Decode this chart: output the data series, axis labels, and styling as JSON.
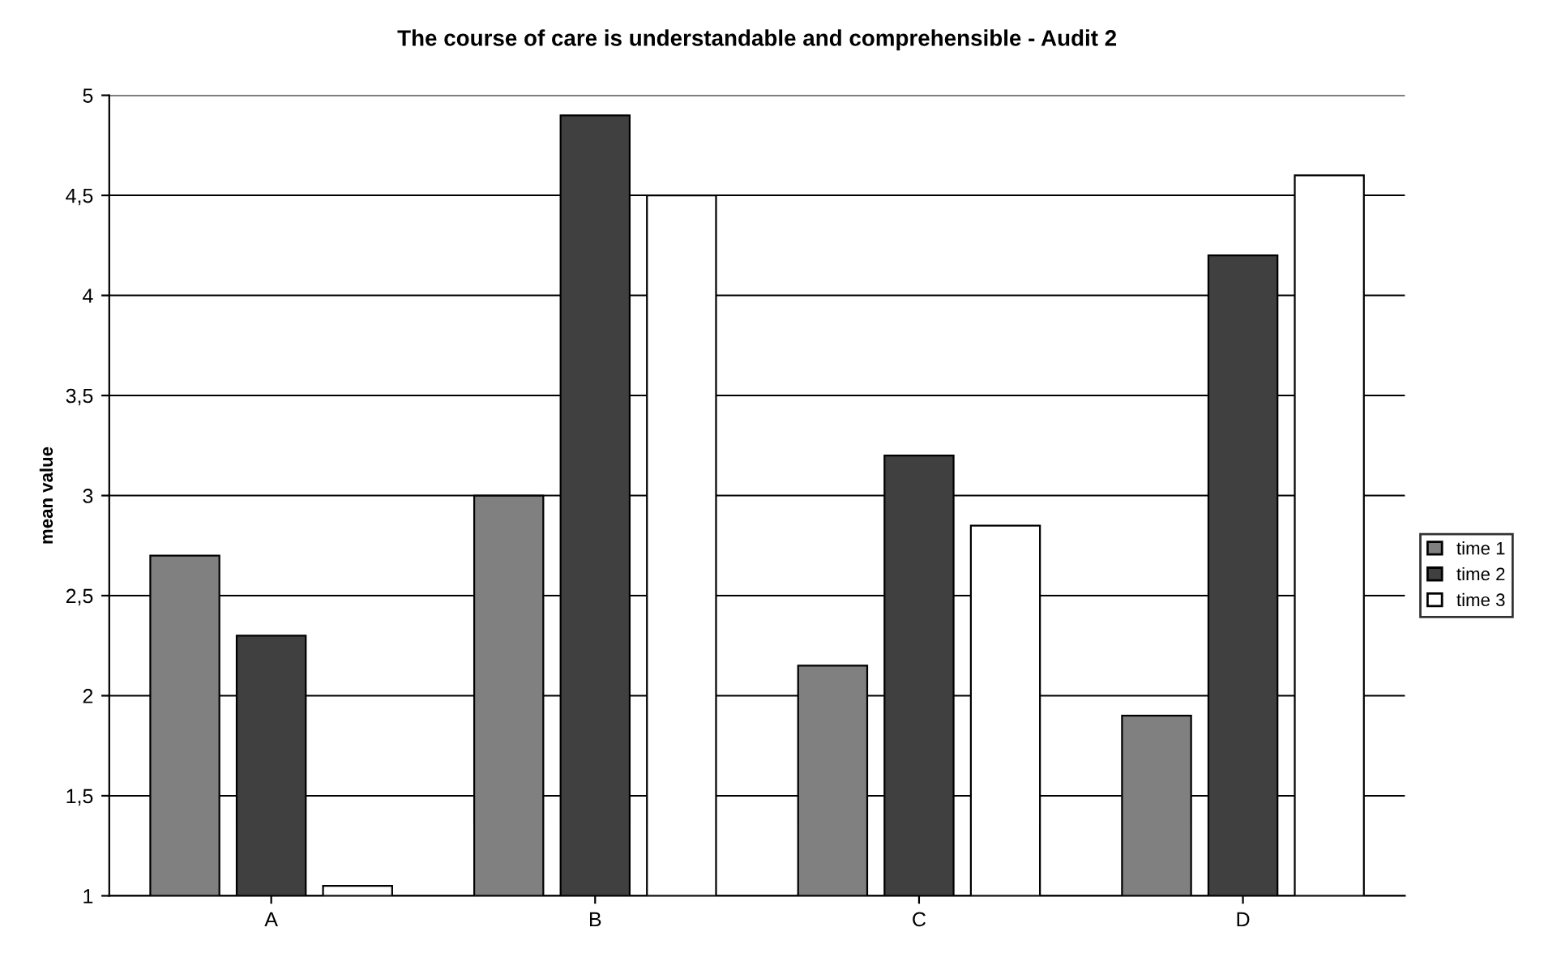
{
  "chart_data": {
    "type": "bar",
    "title": "The course of care is understandable and comprehensible - Audit 2",
    "ylabel": "mean value",
    "categories": [
      "A",
      "B",
      "C",
      "D"
    ],
    "series": [
      {
        "name": "time 1",
        "color": "#808080",
        "values": [
          2.7,
          3.0,
          2.15,
          1.9
        ]
      },
      {
        "name": "time 2",
        "color": "#404040",
        "values": [
          2.3,
          4.9,
          3.2,
          4.2
        ]
      },
      {
        "name": "time 3",
        "color": "#ffffff",
        "values": [
          1.05,
          4.5,
          2.85,
          4.6
        ]
      }
    ],
    "ylim": [
      1,
      5
    ],
    "yticks": [
      1,
      {
        "value": 1.5,
        "label": "1,5"
      },
      2,
      {
        "value": 2.5,
        "label": "2,5"
      },
      3,
      {
        "value": 3.5,
        "label": "3,5"
      },
      4,
      {
        "value": 4.5,
        "label": "4,5"
      },
      5
    ],
    "grid": "y",
    "legend": "right"
  }
}
